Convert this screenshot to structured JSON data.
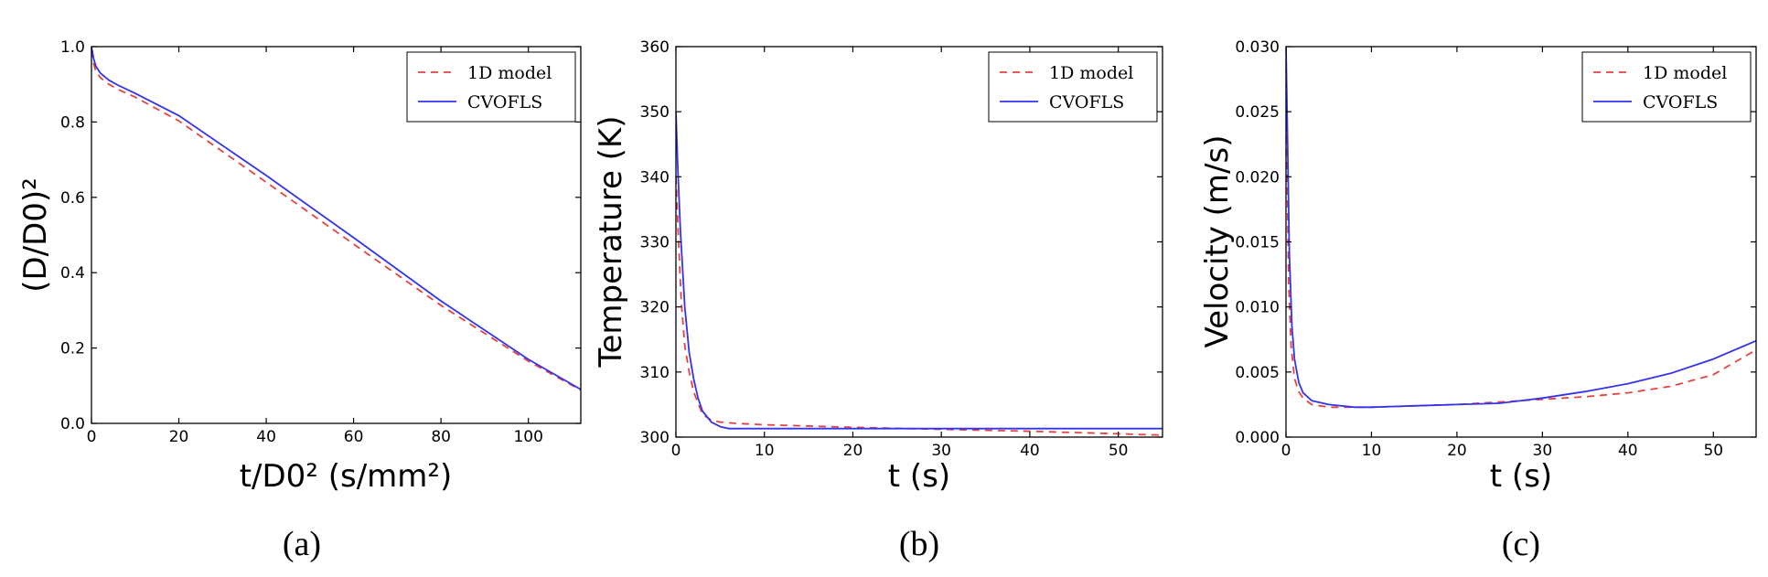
{
  "colors": {
    "model1d": "#e8423f",
    "cvofls": "#3333ee"
  },
  "chart_data": [
    {
      "type": "line",
      "panel_label": "(a)",
      "xlabel": "t/D0² (s/mm²)",
      "ylabel": "(D/D0)²",
      "xlim": [
        0,
        112
      ],
      "ylim": [
        0,
        1.0
      ],
      "xticks": [
        0,
        20,
        40,
        60,
        80,
        100
      ],
      "yticks": [
        0.0,
        0.2,
        0.4,
        0.6,
        0.8,
        1.0
      ],
      "xtick_labels": [
        "0",
        "20",
        "40",
        "60",
        "80",
        "100"
      ],
      "ytick_labels": [
        "0.0",
        "0.2",
        "0.4",
        "0.6",
        "0.8",
        "1.0"
      ],
      "legend": {
        "position": "top-right",
        "entries": [
          "1D model",
          "CVOFLS"
        ]
      },
      "series": [
        {
          "name": "1D model",
          "style": "dashed",
          "x": [
            0,
            0.5,
            1,
            2,
            4,
            6,
            10,
            20,
            40,
            60,
            80,
            100,
            112
          ],
          "y": [
            0.99,
            0.955,
            0.935,
            0.918,
            0.9,
            0.887,
            0.866,
            0.803,
            0.64,
            0.476,
            0.313,
            0.165,
            0.088
          ]
        },
        {
          "name": "CVOFLS",
          "style": "solid",
          "x": [
            0,
            0.5,
            1,
            2,
            4,
            6,
            10,
            20,
            40,
            60,
            80,
            100,
            112
          ],
          "y": [
            1.0,
            0.968,
            0.948,
            0.93,
            0.911,
            0.898,
            0.876,
            0.817,
            0.658,
            0.493,
            0.325,
            0.17,
            0.09
          ]
        }
      ]
    },
    {
      "type": "line",
      "panel_label": "(b)",
      "xlabel": "t (s)",
      "ylabel": "Temperature (K)",
      "xlim": [
        0,
        55
      ],
      "ylim": [
        300,
        360
      ],
      "xticks": [
        0,
        10,
        20,
        30,
        40,
        50
      ],
      "yticks": [
        300,
        310,
        320,
        330,
        340,
        350,
        360
      ],
      "xtick_labels": [
        "0",
        "10",
        "20",
        "30",
        "40",
        "50"
      ],
      "ytick_labels": [
        "300",
        "310",
        "320",
        "330",
        "340",
        "350",
        "360"
      ],
      "legend": {
        "position": "top-right",
        "entries": [
          "1D model",
          "CVOFLS"
        ]
      },
      "series": [
        {
          "name": "1D model",
          "style": "dashed",
          "x": [
            0,
            0.3,
            0.6,
            1,
            1.5,
            2,
            3,
            4,
            5,
            7,
            10,
            20,
            30,
            40,
            50,
            55
          ],
          "y": [
            340,
            330,
            321,
            314,
            310,
            307,
            303.5,
            302.6,
            302.3,
            302.1,
            301.9,
            301.5,
            301.2,
            300.9,
            300.5,
            300.3
          ]
        },
        {
          "name": "CVOFLS",
          "style": "solid",
          "x": [
            0,
            0.2,
            0.5,
            1,
            1.5,
            2,
            2.5,
            3,
            4,
            5,
            6,
            8,
            10,
            20,
            30,
            40,
            50,
            55
          ],
          "y": [
            350,
            342,
            332,
            320,
            313,
            309,
            306,
            304,
            302.3,
            301.6,
            301.3,
            301.3,
            301.3,
            301.3,
            301.3,
            301.3,
            301.3,
            301.3
          ]
        }
      ]
    },
    {
      "type": "line",
      "panel_label": "(c)",
      "xlabel": "t (s)",
      "ylabel": "Velocity (m/s)",
      "xlim": [
        0,
        55
      ],
      "ylim": [
        0,
        0.03
      ],
      "xticks": [
        0,
        10,
        20,
        30,
        40,
        50
      ],
      "yticks": [
        0.0,
        0.005,
        0.01,
        0.015,
        0.02,
        0.025,
        0.03
      ],
      "xtick_labels": [
        "0",
        "10",
        "20",
        "30",
        "40",
        "50"
      ],
      "ytick_labels": [
        "0.000",
        "0.005",
        "0.010",
        "0.015",
        "0.020",
        "0.025",
        "0.030"
      ],
      "legend": {
        "position": "top-right",
        "entries": [
          "1D model",
          "CVOFLS"
        ]
      },
      "series": [
        {
          "name": "1D model",
          "style": "dashed",
          "x": [
            0,
            0.15,
            0.3,
            0.6,
            1,
            1.5,
            2,
            3,
            5,
            8,
            10,
            15,
            20,
            25,
            30,
            35,
            40,
            45,
            50,
            55
          ],
          "y": [
            0.03,
            0.02,
            0.012,
            0.007,
            0.0045,
            0.0035,
            0.003,
            0.0025,
            0.0023,
            0.0023,
            0.0023,
            0.0024,
            0.0025,
            0.0027,
            0.0029,
            0.0031,
            0.0034,
            0.0039,
            0.0048,
            0.0067
          ]
        },
        {
          "name": "CVOFLS",
          "style": "solid",
          "x": [
            0,
            0.2,
            0.4,
            0.7,
            1,
            1.5,
            2,
            3,
            5,
            8,
            10,
            15,
            20,
            25,
            30,
            35,
            40,
            45,
            50,
            55
          ],
          "y": [
            0.03,
            0.022,
            0.014,
            0.0085,
            0.006,
            0.0042,
            0.0034,
            0.0028,
            0.0025,
            0.0023,
            0.0023,
            0.0024,
            0.0025,
            0.0026,
            0.003,
            0.0035,
            0.0041,
            0.0049,
            0.006,
            0.0074
          ]
        }
      ]
    }
  ]
}
